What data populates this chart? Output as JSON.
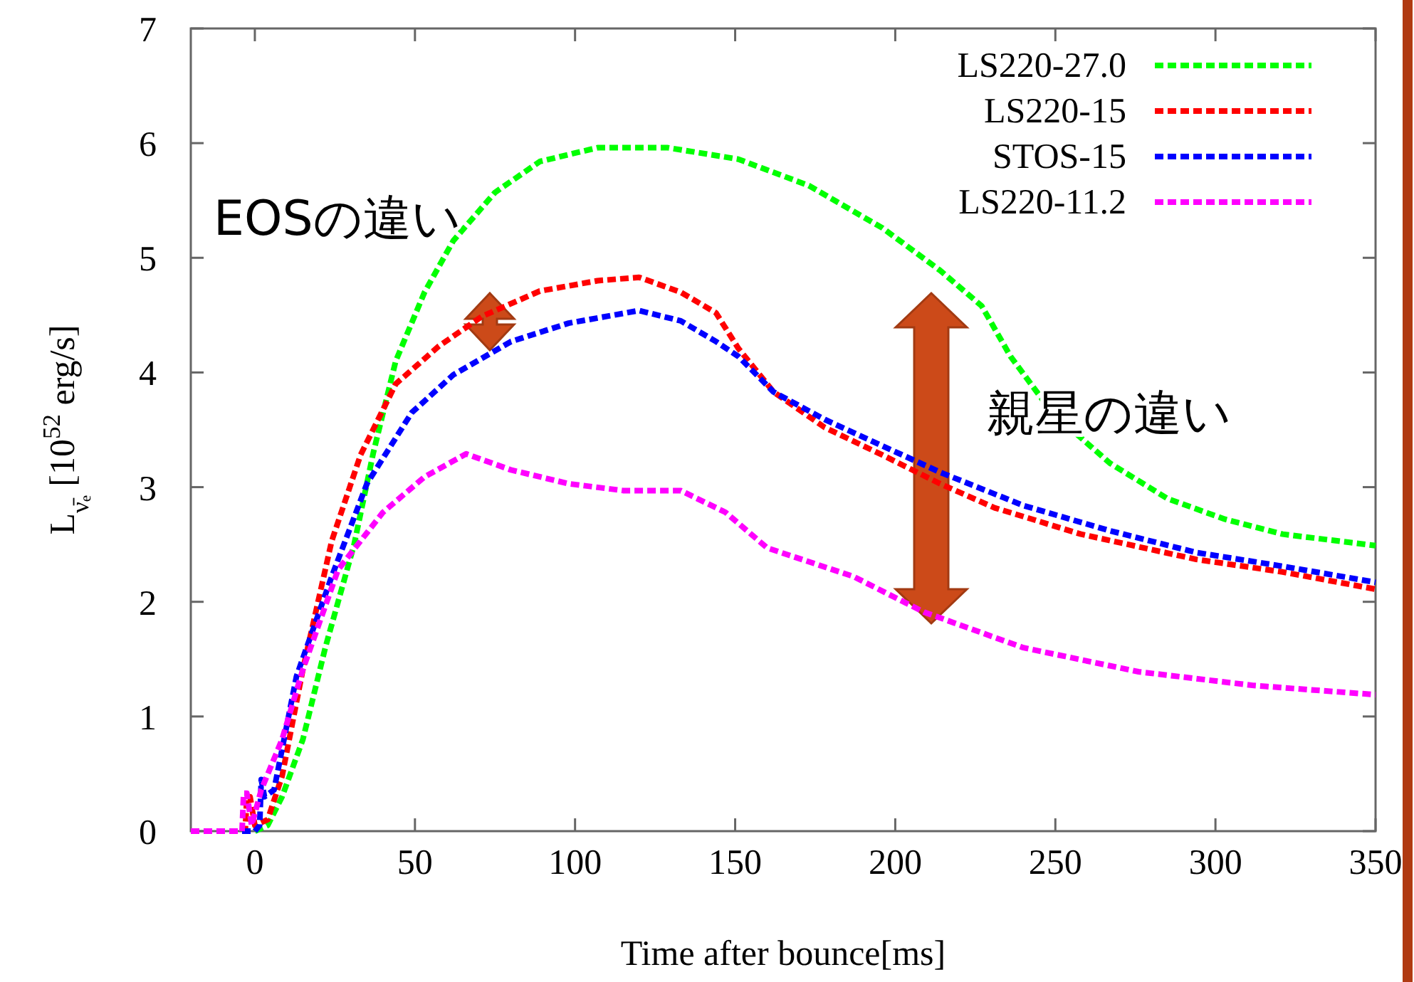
{
  "chart_data": {
    "type": "line",
    "xlabel": "Time after bounce[ms]",
    "ylabel": "L$_{ν̄ₑ}$ [10$^{52}$ erg/s]",
    "xlim": [
      -20,
      350
    ],
    "ylim": [
      0,
      7
    ],
    "xticks": [
      0,
      50,
      100,
      150,
      200,
      250,
      300,
      350
    ],
    "yticks": [
      0,
      1,
      2,
      3,
      4,
      5,
      6,
      7
    ],
    "grid": false,
    "legend": "top right",
    "line_style": "dashed",
    "marker": "none",
    "annotations": [
      "EOSの違い",
      "親星の違い"
    ],
    "series": [
      {
        "name": "LS220-27.0",
        "color": "#00ff00",
        "x": [
          -20,
          0,
          4,
          8.5,
          15,
          22,
          31,
          37,
          44,
          53,
          62,
          75,
          89,
          107,
          129,
          151,
          173,
          196,
          214,
          227,
          236,
          249,
          267,
          285,
          303,
          321,
          350
        ],
        "values": [
          0,
          0,
          0.05,
          0.3,
          0.8,
          1.6,
          2.5,
          3.3,
          4.1,
          4.7,
          5.15,
          5.57,
          5.84,
          5.96,
          5.96,
          5.86,
          5.63,
          5.26,
          4.89,
          4.58,
          4.14,
          3.65,
          3.21,
          2.9,
          2.72,
          2.59,
          2.49
        ]
      },
      {
        "name": "LS220-15",
        "color": "#ff0000",
        "x": [
          -20,
          -3,
          -2.5,
          -1.5,
          0,
          4,
          8.5,
          15,
          24,
          33,
          44,
          57.5,
          71,
          89,
          107,
          120,
          133,
          144,
          151,
          162,
          178,
          196,
          214,
          231,
          258,
          294,
          321,
          350
        ],
        "values": [
          0,
          0,
          0.3,
          0.3,
          0.05,
          0.1,
          0.48,
          1.41,
          2.53,
          3.28,
          3.9,
          4.23,
          4.49,
          4.71,
          4.8,
          4.83,
          4.7,
          4.52,
          4.21,
          3.83,
          3.52,
          3.28,
          3.03,
          2.82,
          2.59,
          2.37,
          2.26,
          2.11
        ]
      },
      {
        "name": "STOS-15",
        "color": "#0000ff",
        "x": [
          -20,
          0,
          1.5,
          2,
          3,
          6,
          13,
          24,
          35,
          49,
          62,
          80,
          98,
          120,
          133,
          144,
          151,
          162,
          178,
          196,
          214,
          240,
          267,
          294,
          321,
          350
        ],
        "values": [
          0,
          0,
          0.05,
          0.45,
          0.3,
          0.36,
          1.35,
          2.22,
          3.03,
          3.65,
          3.98,
          4.27,
          4.43,
          4.54,
          4.45,
          4.27,
          4.14,
          3.83,
          3.59,
          3.36,
          3.13,
          2.84,
          2.62,
          2.43,
          2.31,
          2.17
        ]
      },
      {
        "name": "LS220-11.2",
        "color": "#ff00ff",
        "x": [
          -20,
          -4,
          -3.5,
          -2.5,
          -1,
          2,
          8.5,
          15,
          26,
          40,
          53,
          66,
          80,
          98,
          115,
          133,
          147,
          160,
          187,
          209,
          240,
          276,
          312,
          350
        ],
        "values": [
          0,
          0,
          0.33,
          0.33,
          0.05,
          0.36,
          0.8,
          1.41,
          2.28,
          2.78,
          3.09,
          3.29,
          3.15,
          3.03,
          2.97,
          2.97,
          2.78,
          2.47,
          2.22,
          1.91,
          1.6,
          1.39,
          1.27,
          1.19
        ]
      }
    ]
  }
}
